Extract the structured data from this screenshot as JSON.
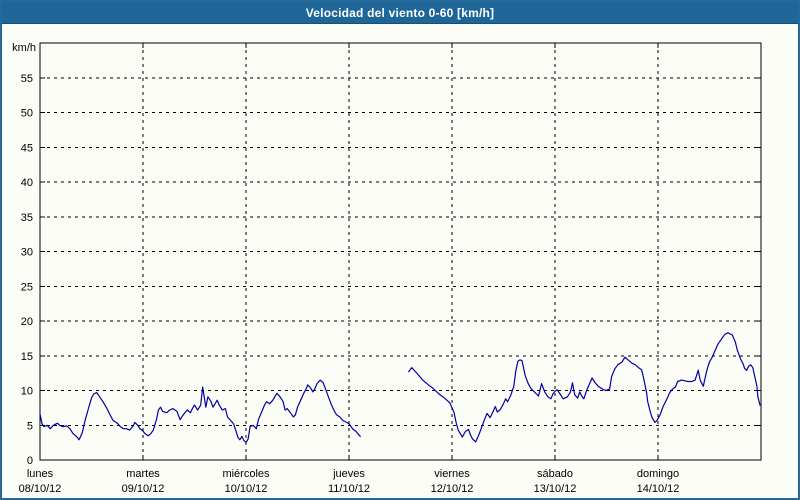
{
  "title": "Velocidad del viento 0-60 [km/h]",
  "colors": {
    "titlebar": "#1E6598",
    "frame": "#25689A",
    "background": "#FCFDF7",
    "line": "#0000A8",
    "grid": "#000000"
  },
  "chart_data": {
    "type": "line",
    "title": "Velocidad del viento 0-60 [km/h]",
    "ylabel": "km/h",
    "xlabel": "",
    "ylim": [
      0,
      60
    ],
    "grid": "dashed",
    "legend_position": "none",
    "line_color": "#0000A8",
    "ytick_labels": [
      0,
      5,
      10,
      15,
      20,
      25,
      30,
      35,
      40,
      45,
      50,
      55
    ],
    "x_days": [
      {
        "name": "lunes",
        "date": "08/10/12"
      },
      {
        "name": "martes",
        "date": "09/10/12"
      },
      {
        "name": "miércoles",
        "date": "10/10/12"
      },
      {
        "name": "jueves",
        "date": "11/10/12"
      },
      {
        "name": "viernes",
        "date": "12/10/12"
      },
      {
        "name": "sábado",
        "date": "13/10/12"
      },
      {
        "name": "domingo",
        "date": "14/10/12"
      }
    ],
    "series": [
      {
        "name": "velocidad del viento",
        "unit": "km/h",
        "x_unit": "days since 08/10/12 00:00",
        "segments": [
          [
            [
              0.0,
              6.6
            ],
            [
              0.02,
              5.2
            ],
            [
              0.04,
              4.8
            ],
            [
              0.07,
              5.0
            ],
            [
              0.1,
              4.5
            ],
            [
              0.13,
              5.0
            ],
            [
              0.17,
              5.3
            ],
            [
              0.19,
              5.0
            ],
            [
              0.22,
              4.8
            ],
            [
              0.26,
              4.9
            ],
            [
              0.29,
              4.5
            ],
            [
              0.32,
              3.8
            ],
            [
              0.36,
              3.3
            ],
            [
              0.38,
              2.9
            ],
            [
              0.41,
              3.9
            ],
            [
              0.44,
              5.8
            ],
            [
              0.47,
              7.4
            ],
            [
              0.5,
              8.9
            ],
            [
              0.52,
              9.5
            ],
            [
              0.55,
              9.7
            ],
            [
              0.58,
              9.1
            ],
            [
              0.61,
              8.4
            ],
            [
              0.65,
              7.4
            ],
            [
              0.68,
              6.5
            ],
            [
              0.71,
              5.7
            ],
            [
              0.75,
              5.3
            ],
            [
              0.78,
              4.8
            ],
            [
              0.81,
              4.5
            ],
            [
              0.84,
              4.5
            ],
            [
              0.87,
              4.3
            ],
            [
              0.9,
              4.8
            ],
            [
              0.92,
              5.4
            ],
            [
              0.95,
              5.0
            ],
            [
              0.97,
              4.5
            ],
            [
              0.99,
              4.3
            ],
            [
              1.02,
              3.8
            ],
            [
              1.05,
              3.5
            ],
            [
              1.07,
              3.7
            ],
            [
              1.1,
              4.3
            ],
            [
              1.13,
              5.8
            ],
            [
              1.15,
              7.2
            ],
            [
              1.17,
              7.6
            ],
            [
              1.19,
              7.0
            ],
            [
              1.23,
              6.8
            ],
            [
              1.26,
              7.2
            ],
            [
              1.29,
              7.4
            ],
            [
              1.33,
              7.0
            ],
            [
              1.36,
              5.8
            ],
            [
              1.39,
              6.5
            ],
            [
              1.43,
              7.2
            ],
            [
              1.46,
              6.8
            ],
            [
              1.48,
              7.4
            ],
            [
              1.5,
              7.9
            ],
            [
              1.53,
              7.2
            ],
            [
              1.56,
              7.9
            ],
            [
              1.58,
              10.5
            ],
            [
              1.61,
              7.6
            ],
            [
              1.63,
              9.1
            ],
            [
              1.66,
              8.4
            ],
            [
              1.68,
              7.6
            ],
            [
              1.72,
              8.6
            ],
            [
              1.74,
              7.9
            ],
            [
              1.77,
              7.2
            ],
            [
              1.8,
              7.4
            ],
            [
              1.82,
              6.2
            ],
            [
              1.85,
              5.7
            ],
            [
              1.88,
              5.2
            ],
            [
              1.9,
              4.3
            ],
            [
              1.92,
              3.3
            ],
            [
              1.94,
              2.9
            ],
            [
              1.96,
              3.4
            ],
            [
              1.98,
              2.8
            ],
            [
              2.0,
              2.5
            ],
            [
              2.02,
              3.0
            ],
            [
              2.04,
              4.8
            ],
            [
              2.07,
              5.0
            ],
            [
              2.1,
              4.5
            ],
            [
              2.12,
              5.8
            ],
            [
              2.16,
              7.2
            ],
            [
              2.18,
              7.9
            ],
            [
              2.2,
              8.4
            ],
            [
              2.23,
              8.1
            ],
            [
              2.26,
              8.6
            ],
            [
              2.28,
              9.1
            ],
            [
              2.3,
              9.6
            ],
            [
              2.33,
              9.1
            ],
            [
              2.36,
              8.4
            ],
            [
              2.38,
              7.2
            ],
            [
              2.4,
              7.4
            ],
            [
              2.43,
              6.8
            ],
            [
              2.46,
              6.2
            ],
            [
              2.48,
              6.5
            ],
            [
              2.5,
              7.6
            ],
            [
              2.54,
              8.9
            ],
            [
              2.56,
              9.6
            ],
            [
              2.58,
              10.1
            ],
            [
              2.6,
              10.8
            ],
            [
              2.63,
              10.3
            ],
            [
              2.65,
              9.8
            ],
            [
              2.67,
              10.3
            ],
            [
              2.69,
              11.0
            ],
            [
              2.72,
              11.5
            ],
            [
              2.75,
              11.1
            ],
            [
              2.77,
              10.3
            ],
            [
              2.8,
              9.1
            ],
            [
              2.83,
              7.9
            ],
            [
              2.86,
              7.0
            ],
            [
              2.88,
              6.5
            ],
            [
              2.91,
              6.2
            ],
            [
              2.94,
              5.7
            ],
            [
              2.98,
              5.4
            ],
            [
              3.0,
              5.2
            ],
            [
              3.02,
              4.8
            ],
            [
              3.04,
              4.4
            ],
            [
              3.07,
              4.1
            ],
            [
              3.09,
              3.7
            ],
            [
              3.11,
              3.4
            ]
          ],
          [
            [
              3.58,
              12.7
            ],
            [
              3.61,
              13.3
            ],
            [
              3.64,
              12.8
            ],
            [
              3.67,
              12.3
            ],
            [
              3.71,
              11.6
            ],
            [
              3.74,
              11.2
            ],
            [
              3.78,
              10.7
            ],
            [
              3.81,
              10.4
            ],
            [
              3.83,
              10.1
            ],
            [
              3.86,
              9.7
            ],
            [
              3.89,
              9.3
            ],
            [
              3.92,
              9.0
            ],
            [
              3.95,
              8.6
            ],
            [
              3.98,
              8.2
            ],
            [
              4.0,
              7.5
            ],
            [
              4.02,
              6.8
            ],
            [
              4.04,
              5.4
            ],
            [
              4.06,
              4.3
            ],
            [
              4.1,
              3.3
            ],
            [
              4.13,
              4.1
            ],
            [
              4.16,
              4.4
            ],
            [
              4.18,
              3.6
            ],
            [
              4.2,
              3.0
            ],
            [
              4.23,
              2.6
            ],
            [
              4.26,
              3.6
            ],
            [
              4.29,
              4.8
            ],
            [
              4.32,
              6.0
            ],
            [
              4.34,
              6.7
            ],
            [
              4.37,
              6.1
            ],
            [
              4.4,
              7.0
            ],
            [
              4.42,
              7.7
            ],
            [
              4.44,
              6.9
            ],
            [
              4.47,
              7.3
            ],
            [
              4.5,
              8.1
            ],
            [
              4.52,
              8.8
            ],
            [
              4.54,
              8.4
            ],
            [
              4.57,
              9.3
            ],
            [
              4.6,
              10.6
            ],
            [
              4.62,
              12.9
            ],
            [
              4.64,
              14.2
            ],
            [
              4.66,
              14.4
            ],
            [
              4.68,
              14.3
            ],
            [
              4.71,
              12.2
            ],
            [
              4.74,
              11.0
            ],
            [
              4.77,
              10.2
            ],
            [
              4.8,
              9.8
            ],
            [
              4.82,
              9.5
            ],
            [
              4.84,
              9.2
            ],
            [
              4.87,
              11.0
            ],
            [
              4.9,
              9.8
            ],
            [
              4.93,
              9.1
            ],
            [
              4.96,
              8.8
            ],
            [
              4.98,
              9.5
            ],
            [
              5.0,
              9.9
            ],
            [
              5.02,
              10.1
            ],
            [
              5.05,
              9.5
            ],
            [
              5.08,
              8.8
            ],
            [
              5.12,
              9.1
            ],
            [
              5.15,
              9.8
            ],
            [
              5.17,
              11.1
            ],
            [
              5.19,
              9.4
            ],
            [
              5.22,
              8.9
            ],
            [
              5.24,
              9.8
            ],
            [
              5.26,
              9.2
            ],
            [
              5.28,
              8.8
            ],
            [
              5.31,
              10.1
            ],
            [
              5.36,
              11.8
            ],
            [
              5.39,
              11.1
            ],
            [
              5.42,
              10.6
            ],
            [
              5.46,
              10.2
            ],
            [
              5.49,
              10.0
            ],
            [
              5.51,
              10.1
            ],
            [
              5.53,
              10.2
            ],
            [
              5.55,
              12.0
            ],
            [
              5.58,
              13.1
            ],
            [
              5.61,
              13.7
            ],
            [
              5.65,
              14.1
            ],
            [
              5.68,
              14.8
            ],
            [
              5.71,
              14.4
            ],
            [
              5.75,
              13.9
            ],
            [
              5.78,
              13.7
            ],
            [
              5.81,
              13.3
            ],
            [
              5.84,
              13.0
            ],
            [
              5.85,
              12.5
            ],
            [
              5.87,
              11.1
            ],
            [
              5.89,
              9.6
            ],
            [
              5.9,
              8.4
            ],
            [
              5.92,
              7.2
            ],
            [
              5.94,
              6.2
            ],
            [
              5.97,
              5.4
            ],
            [
              5.99,
              5.7
            ],
            [
              6.02,
              6.5
            ],
            [
              6.05,
              7.7
            ],
            [
              6.09,
              8.9
            ],
            [
              6.11,
              9.6
            ],
            [
              6.14,
              10.2
            ],
            [
              6.17,
              10.5
            ],
            [
              6.19,
              11.3
            ],
            [
              6.23,
              11.5
            ],
            [
              6.26,
              11.4
            ],
            [
              6.29,
              11.3
            ],
            [
              6.33,
              11.3
            ],
            [
              6.36,
              11.5
            ],
            [
              6.39,
              12.9
            ],
            [
              6.41,
              11.5
            ],
            [
              6.44,
              10.6
            ],
            [
              6.46,
              12.0
            ],
            [
              6.48,
              13.2
            ],
            [
              6.5,
              14.1
            ],
            [
              6.53,
              14.9
            ],
            [
              6.55,
              15.6
            ],
            [
              6.58,
              16.6
            ],
            [
              6.62,
              17.5
            ],
            [
              6.65,
              18.1
            ],
            [
              6.68,
              18.3
            ],
            [
              6.72,
              18.0
            ],
            [
              6.75,
              17.0
            ],
            [
              6.77,
              15.8
            ],
            [
              6.8,
              14.6
            ],
            [
              6.83,
              13.7
            ],
            [
              6.84,
              13.2
            ],
            [
              6.86,
              12.9
            ],
            [
              6.88,
              13.5
            ],
            [
              6.9,
              13.7
            ],
            [
              6.92,
              13.3
            ],
            [
              6.94,
              12.0
            ],
            [
              6.96,
              10.6
            ],
            [
              6.97,
              9.1
            ],
            [
              6.99,
              7.9
            ]
          ]
        ]
      }
    ]
  }
}
